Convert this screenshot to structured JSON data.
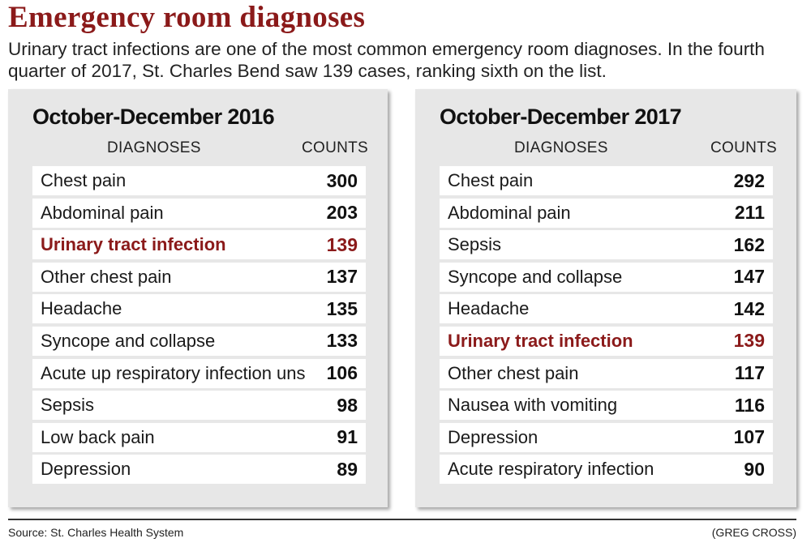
{
  "title": "Emergency room diagnoses",
  "intro": "Urinary tract infections are one of the most common emergency room diagnoses. In the fourth quarter of 2017, St. Charles Bend saw 139 cases, ranking sixth on the list.",
  "colors": {
    "headline": "#8b1a1a",
    "highlight": "#8b1a1a",
    "panel_bg": "#e7e7e7"
  },
  "source": "Source: St. Charles Health System",
  "credit": "(GREG CROSS)",
  "chart_data": [
    {
      "type": "table",
      "title": "October-December 2016",
      "columns": [
        "DIAGNOSES",
        "COUNTS"
      ],
      "rows": [
        {
          "label": "Chest pain",
          "value": "300",
          "highlight": false
        },
        {
          "label": "Abdominal pain",
          "value": "203",
          "highlight": false
        },
        {
          "label": "Urinary tract infection",
          "value": "139",
          "highlight": true
        },
        {
          "label": "Other chest pain",
          "value": "137",
          "highlight": false
        },
        {
          "label": "Headache",
          "value": "135",
          "highlight": false
        },
        {
          "label": "Syncope and collapse",
          "value": "133",
          "highlight": false
        },
        {
          "label": "Acute up respiratory infection uns",
          "value": "106",
          "highlight": false
        },
        {
          "label": "Sepsis",
          "value": "98",
          "highlight": false
        },
        {
          "label": "Low back pain",
          "value": "91",
          "highlight": false
        },
        {
          "label": "Depression",
          "value": "89",
          "highlight": false
        }
      ]
    },
    {
      "type": "table",
      "title": "October-December 2017",
      "columns": [
        "DIAGNOSES",
        "COUNTS"
      ],
      "rows": [
        {
          "label": "Chest pain",
          "value": "292",
          "highlight": false
        },
        {
          "label": "Abdominal pain",
          "value": "211",
          "highlight": false
        },
        {
          "label": "Sepsis",
          "value": "162",
          "highlight": false
        },
        {
          "label": "Syncope and collapse",
          "value": "147",
          "highlight": false
        },
        {
          "label": "Headache",
          "value": "142",
          "highlight": false
        },
        {
          "label": "Urinary tract infection",
          "value": "139",
          "highlight": true
        },
        {
          "label": "Other chest pain",
          "value": "117",
          "highlight": false
        },
        {
          "label": "Nausea with vomiting",
          "value": "116",
          "highlight": false
        },
        {
          "label": "Depression",
          "value": "107",
          "highlight": false
        },
        {
          "label": "Acute respiratory infection",
          "value": "90",
          "highlight": false
        }
      ]
    }
  ]
}
